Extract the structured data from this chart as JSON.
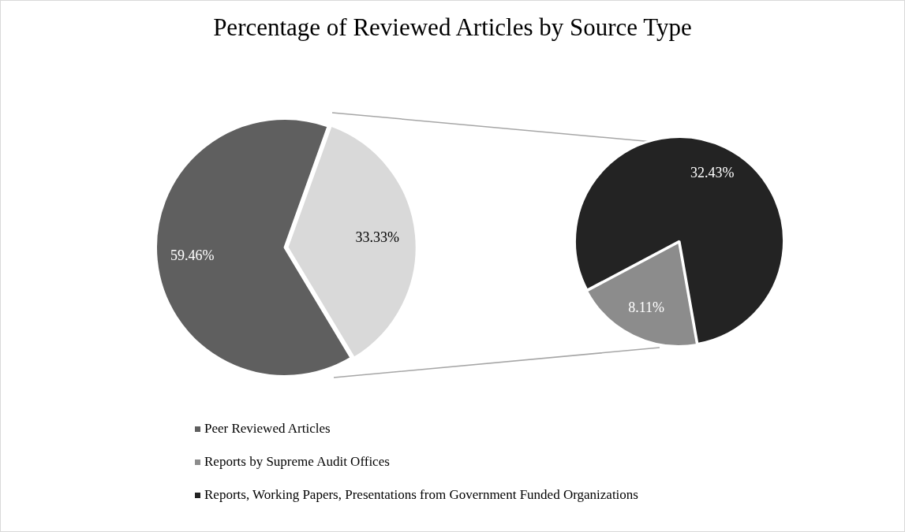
{
  "chart_data": [
    {
      "type": "pie",
      "title": "Percentage of Reviewed Articles by Source Type",
      "categories": [
        "Peer Reviewed Articles",
        null
      ],
      "values": [
        59.46,
        33.33
      ],
      "colors": [
        "#5f5f5f",
        "#d9d9d9"
      ],
      "value_labels": [
        "59.46%",
        "33.33%"
      ],
      "legend": "bottom"
    },
    {
      "type": "pie",
      "categories": [
        "Reports by Supreme Audit Offices",
        "Reports, Working Papers, Presentations from Government Funded Organizations"
      ],
      "values": [
        8.11,
        32.43
      ],
      "colors": [
        "#8c8c8c",
        "#232323"
      ],
      "value_labels": [
        "8.11%",
        "32.43%"
      ],
      "legend": "bottom"
    }
  ]
}
